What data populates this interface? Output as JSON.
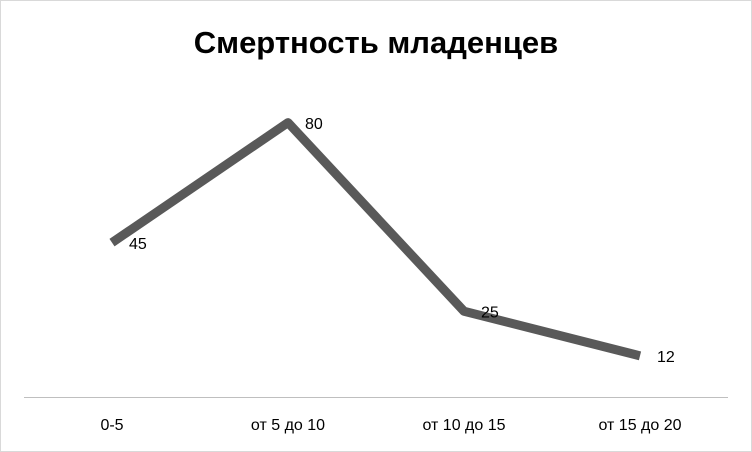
{
  "chart_data": {
    "type": "line",
    "title": "Смертность младенцев",
    "categories": [
      "0-5",
      "от 5 до 10",
      "от 10 до 15",
      "от 15 до 20"
    ],
    "values": [
      45,
      80,
      25,
      12
    ],
    "color": "#595959",
    "ylim": [
      0,
      100
    ],
    "data_labels": true
  }
}
